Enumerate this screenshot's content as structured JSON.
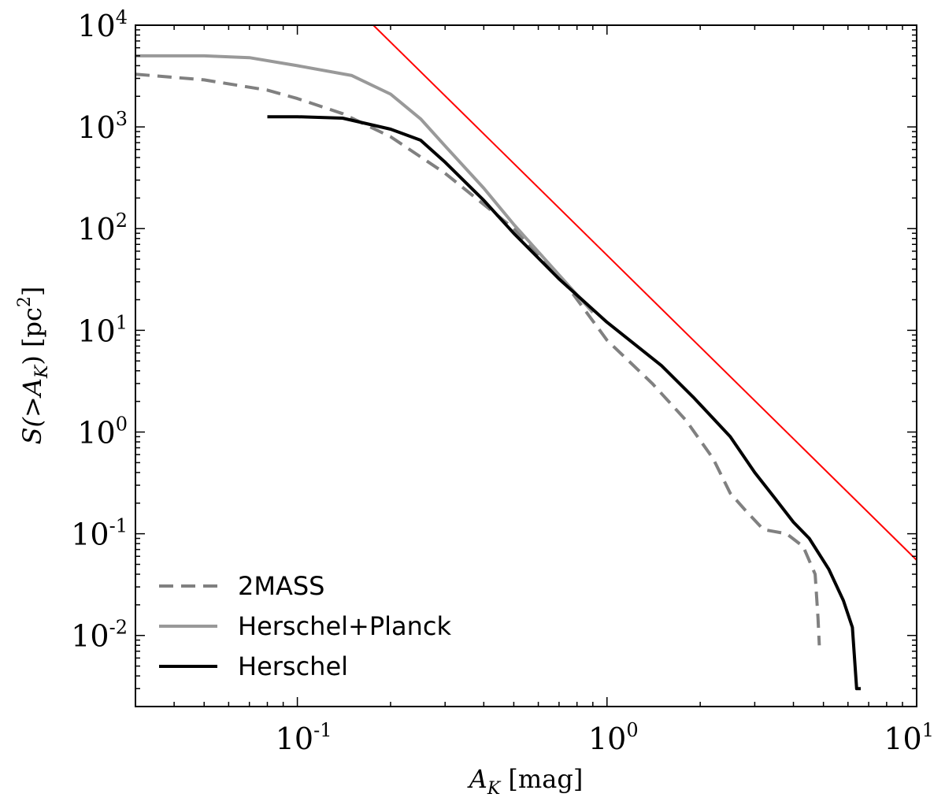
{
  "chart_data": {
    "type": "line",
    "xscale": "log",
    "yscale": "log",
    "xlim": [
      0.03,
      10
    ],
    "ylim": [
      0.002,
      10000
    ],
    "xlabel": {
      "var": "A",
      "sub": "K",
      "unit": "[mag]"
    },
    "ylabel": {
      "func": "S(>",
      "var": "A",
      "sub": "K",
      "close": ")",
      "unit": "[pc",
      "sup": "2",
      "unit_close": "]"
    },
    "x_ticks": [
      {
        "base": "10",
        "exp": "-1",
        "value": 0.1
      },
      {
        "base": "10",
        "exp": "0",
        "value": 1
      },
      {
        "base": "10",
        "exp": "1",
        "value": 10
      }
    ],
    "y_ticks": [
      {
        "base": "10",
        "exp": "4",
        "value": 10000
      },
      {
        "base": "10",
        "exp": "3",
        "value": 1000
      },
      {
        "base": "10",
        "exp": "2",
        "value": 100
      },
      {
        "base": "10",
        "exp": "1",
        "value": 10
      },
      {
        "base": "10",
        "exp": "0",
        "value": 1
      },
      {
        "base": "10",
        "exp": "-1",
        "value": 0.1
      },
      {
        "base": "10",
        "exp": "-2",
        "value": 0.01
      }
    ],
    "legend_position": "bottom-left",
    "series": [
      {
        "name": "2MASS",
        "color": "#808080",
        "style": "dashed",
        "points": [
          [
            0.03,
            3300
          ],
          [
            0.05,
            2900
          ],
          [
            0.08,
            2300
          ],
          [
            0.1,
            1900
          ],
          [
            0.14,
            1350
          ],
          [
            0.2,
            800
          ],
          [
            0.3,
            350
          ],
          [
            0.5,
            100
          ],
          [
            0.7,
            35
          ],
          [
            1.0,
            8
          ],
          [
            1.4,
            3
          ],
          [
            1.8,
            1.3
          ],
          [
            2.2,
            0.55
          ],
          [
            2.5,
            0.25
          ],
          [
            2.8,
            0.17
          ],
          [
            3.2,
            0.11
          ],
          [
            3.8,
            0.1
          ],
          [
            4.3,
            0.075
          ],
          [
            4.7,
            0.04
          ],
          [
            4.8,
            0.015
          ],
          [
            4.85,
            0.008
          ]
        ]
      },
      {
        "name": "Herschel+Planck",
        "color": "#999999",
        "style": "solid",
        "points": [
          [
            0.03,
            5000
          ],
          [
            0.05,
            5000
          ],
          [
            0.07,
            4800
          ],
          [
            0.1,
            4000
          ],
          [
            0.15,
            3200
          ],
          [
            0.2,
            2100
          ],
          [
            0.25,
            1200
          ],
          [
            0.3,
            650
          ],
          [
            0.4,
            250
          ],
          [
            0.5,
            110
          ],
          [
            0.7,
            35
          ],
          [
            0.9,
            15
          ]
        ]
      },
      {
        "name": "Herschel",
        "color": "#000000",
        "style": "solid",
        "points": [
          [
            0.08,
            1260
          ],
          [
            0.1,
            1260
          ],
          [
            0.14,
            1220
          ],
          [
            0.2,
            950
          ],
          [
            0.25,
            740
          ],
          [
            0.3,
            450
          ],
          [
            0.4,
            190
          ],
          [
            0.5,
            90
          ],
          [
            0.7,
            32
          ],
          [
            1.0,
            12
          ],
          [
            1.5,
            4.5
          ],
          [
            1.9,
            2.2
          ],
          [
            2.5,
            0.9
          ],
          [
            3.0,
            0.4
          ],
          [
            3.5,
            0.22
          ],
          [
            4.0,
            0.13
          ],
          [
            4.5,
            0.09
          ],
          [
            5.2,
            0.045
          ],
          [
            5.8,
            0.022
          ],
          [
            6.2,
            0.012
          ],
          [
            6.4,
            0.003
          ],
          [
            6.6,
            0.003
          ]
        ]
      },
      {
        "name": "",
        "color": "#ff0000",
        "style": "solid",
        "points": [
          [
            0.176,
            10000
          ],
          [
            10,
            0.055
          ]
        ]
      }
    ]
  }
}
